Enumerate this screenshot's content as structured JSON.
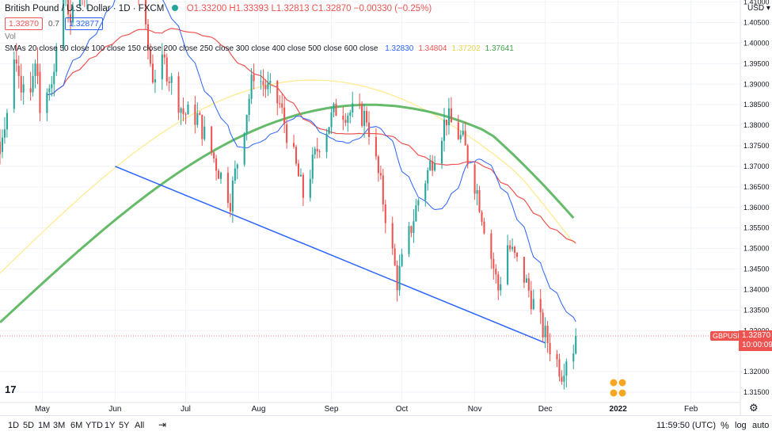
{
  "header": {
    "symbol": "British Pound / U.S. Dollar · 1D · FXCM",
    "ohlc": "O1.33200 H1.33393 L1.32813 C1.32870 −0.00330 (−0.25%)",
    "sell_price": "1.32870",
    "spread": "0.7",
    "buy_price": "1.32877",
    "vol_label": "Vol",
    "sma_label": "SMAs 20 close 50 close 100 close 150 close 200 close 250 close 300 close 400 close 500 close 600 close",
    "sma_values": [
      {
        "text": "1.32830",
        "color": "#2962ff"
      },
      {
        "text": "1.34804",
        "color": "#ef5350"
      },
      {
        "text": "1.37202",
        "color": "#e8d44d"
      },
      {
        "text": "1.37641",
        "color": "#43a047"
      }
    ]
  },
  "toolbar": {
    "timeframes": [
      "1D",
      "5D",
      "1M",
      "3M",
      "6M",
      "YTD",
      "1Y",
      "5Y",
      "All"
    ],
    "clock": "11:59:50 (UTC)",
    "percent": "%",
    "log": "log",
    "auto": "auto",
    "currency": "USD"
  },
  "price_tags": {
    "symbol_tag": "GBPUSD",
    "last_price": "1.32870",
    "countdown": "10:00:09"
  },
  "colors": {
    "up": "#26a69a",
    "down": "#ef5350",
    "sma20": "#2962ff",
    "sma50": "#ef5350",
    "sma100": "#ffe98a",
    "sma200": "#66bb6a",
    "trendline": "#2962ff"
  },
  "chart_data": {
    "type": "candlestick",
    "ylim": [
      1.3125,
      1.4105
    ],
    "y_ticks": [
      1.41,
      1.405,
      1.4,
      1.395,
      1.39,
      1.385,
      1.38,
      1.375,
      1.37,
      1.365,
      1.36,
      1.355,
      1.35,
      1.345,
      1.34,
      1.335,
      1.33,
      1.32,
      1.315
    ],
    "y_tick_labels": [
      "1.41000",
      "1.40500",
      "1.40000",
      "1.39500",
      "1.39000",
      "1.38500",
      "1.38000",
      "1.37500",
      "1.37000",
      "1.36500",
      "1.36000",
      "1.35500",
      "1.35000",
      "1.34500",
      "1.34000",
      "1.33500",
      "1.33000",
      "1.32000",
      "1.31500"
    ],
    "x_range": [
      "2021-04-13",
      "2022-02-22"
    ],
    "x_ticks": [
      {
        "date": "2021-05-01",
        "label": "May"
      },
      {
        "date": "2021-06-01",
        "label": "Jun"
      },
      {
        "date": "2021-07-01",
        "label": "Jul"
      },
      {
        "date": "2021-08-01",
        "label": "Aug"
      },
      {
        "date": "2021-09-01",
        "label": "Sep"
      },
      {
        "date": "2021-10-01",
        "label": "Oct"
      },
      {
        "date": "2021-11-01",
        "label": "Nov"
      },
      {
        "date": "2021-12-01",
        "label": "Dec"
      },
      {
        "date": "2022-01-01",
        "label": "2022"
      },
      {
        "date": "2022-02-01",
        "label": "Feb"
      }
    ],
    "candles_ohlc": [
      [
        "2021-04-13",
        1.376,
        1.379,
        1.3705,
        1.373
      ],
      [
        "2021-04-14",
        1.3735,
        1.379,
        1.372,
        1.377
      ],
      [
        "2021-04-15",
        1.377,
        1.382,
        1.3755,
        1.379
      ],
      [
        "2021-04-16",
        1.379,
        1.384,
        1.377,
        1.383
      ],
      [
        "2021-04-19",
        1.384,
        1.398,
        1.383,
        1.396
      ],
      [
        "2021-04-20",
        1.396,
        1.4,
        1.393,
        1.395
      ],
      [
        "2021-04-21",
        1.3945,
        1.397,
        1.389,
        1.392
      ],
      [
        "2021-04-22",
        1.392,
        1.395,
        1.386,
        1.388
      ],
      [
        "2021-04-23",
        1.388,
        1.392,
        1.385,
        1.39
      ],
      [
        "2021-04-26",
        1.389,
        1.393,
        1.386,
        1.388
      ],
      [
        "2021-04-27",
        1.388,
        1.395,
        1.387,
        1.392
      ],
      [
        "2021-04-28",
        1.392,
        1.396,
        1.389,
        1.395
      ],
      [
        "2021-04-29",
        1.395,
        1.399,
        1.39,
        1.392
      ],
      [
        "2021-04-30",
        1.393,
        1.395,
        1.381,
        1.383
      ],
      [
        "2021-05-03",
        1.383,
        1.389,
        1.381,
        1.388
      ],
      [
        "2021-05-04",
        1.388,
        1.39,
        1.386,
        1.389
      ],
      [
        "2021-05-05",
        1.389,
        1.392,
        1.387,
        1.39
      ],
      [
        "2021-05-06",
        1.39,
        1.395,
        1.387,
        1.393
      ],
      [
        "2021-05-07",
        1.393,
        1.4,
        1.392,
        1.399
      ],
      [
        "2021-05-10",
        1.399,
        1.415,
        1.398,
        1.412
      ],
      [
        "2021-05-11",
        1.412,
        1.416,
        1.409,
        1.413
      ],
      [
        "2021-05-12",
        1.414,
        1.417,
        1.405,
        1.407
      ],
      [
        "2021-05-13",
        1.407,
        1.411,
        1.402,
        1.405
      ],
      [
        "2021-05-14",
        1.405,
        1.41,
        1.404,
        1.409
      ]
    ],
    "series": [
      {
        "name": "SMA 20",
        "color": "#2962ff",
        "last": 1.3283
      },
      {
        "name": "SMA 50",
        "color": "#ef5350",
        "last": 1.34804
      },
      {
        "name": "SMA 100",
        "color": "#ffe98a",
        "last": 1.37202
      },
      {
        "name": "SMA 200",
        "color": "#66bb6a",
        "last": 1.37641
      }
    ],
    "last_price": 1.3287
  }
}
